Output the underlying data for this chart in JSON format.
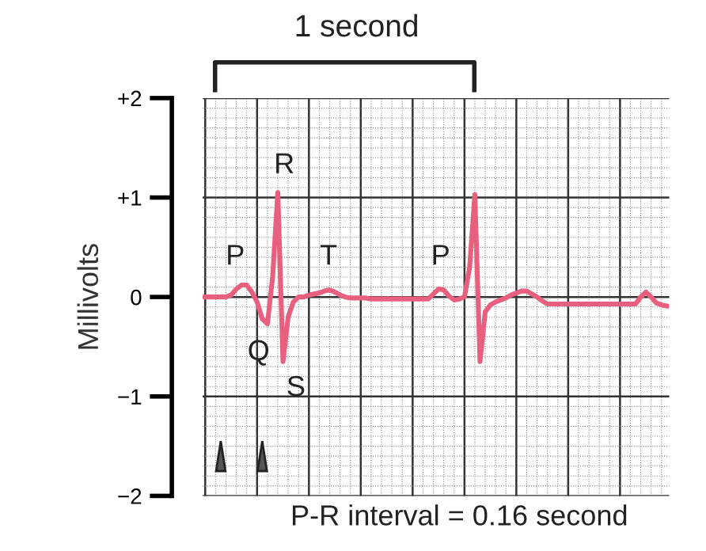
{
  "chart_data": {
    "type": "line",
    "ylabel": "Millivolts",
    "categories": [
      null,
      null,
      null,
      null,
      null,
      null,
      null,
      null,
      null,
      null,
      null,
      null,
      null,
      null,
      null,
      null,
      null,
      null,
      null,
      null,
      null,
      null,
      null,
      null,
      null,
      null,
      null,
      null,
      null,
      null,
      null,
      null,
      null,
      null,
      null,
      null,
      null,
      null,
      null,
      null,
      null,
      null,
      null,
      null,
      null,
      null,
      null,
      null,
      null,
      null,
      null,
      null,
      null,
      null,
      null,
      null,
      null,
      null,
      null,
      null,
      null,
      null,
      null,
      null,
      null,
      null,
      null,
      null,
      null,
      null,
      null,
      null,
      null,
      null,
      null,
      null,
      null,
      null,
      null,
      null,
      null,
      null,
      null,
      null,
      null,
      null,
      null,
      null,
      null,
      null
    ],
    "series": [
      {
        "color": "#e8607e",
        "values": [
          0,
          0,
          0,
          0,
          0,
          0.02,
          0.08,
          0.12,
          0.12,
          0.05,
          -0.05,
          -0.22,
          -0.27,
          0.2,
          1.05,
          -0.65,
          -0.2,
          -0.05,
          0,
          0,
          0.02,
          0.03,
          0.04,
          0.06,
          0.07,
          0.05,
          0.02,
          0,
          -0.01,
          -0.01,
          -0.01,
          -0.01,
          -0.02,
          -0.02,
          -0.02,
          -0.02,
          -0.02,
          -0.02,
          -0.02,
          -0.02,
          -0.02,
          -0.02,
          -0.02,
          -0.02,
          0.03,
          0.08,
          0.07,
          0.01,
          -0.03,
          -0.02,
          0,
          0.3,
          1.03,
          -0.65,
          -0.15,
          -0.08,
          -0.05,
          -0.03,
          -0.01,
          0.02,
          0.04,
          0.06,
          0.06,
          0.03,
          0,
          -0.04,
          -0.07,
          -0.07,
          -0.07,
          -0.07,
          -0.07,
          -0.07,
          -0.07,
          -0.07,
          -0.07,
          -0.07,
          -0.07,
          -0.07,
          -0.07,
          -0.07,
          -0.07,
          -0.07,
          -0.07,
          -0.07,
          0,
          0.05,
          0,
          -0.06,
          -0.08,
          -0.09
        ]
      }
    ],
    "ylim": [
      -2,
      2
    ],
    "yticks": [
      {
        "value": 2,
        "label": "+2"
      },
      {
        "value": 1,
        "label": "+1"
      },
      0,
      {
        "value": -1,
        "label": "−1"
      },
      {
        "value": -2,
        "label": "−2"
      }
    ],
    "grid": true,
    "tick_labels": "y",
    "line_style": "solid",
    "annotations": [
      "1 second",
      "P-R interval = 0.16 second",
      "P",
      "Q",
      "R",
      "S",
      "T",
      "P"
    ]
  }
}
